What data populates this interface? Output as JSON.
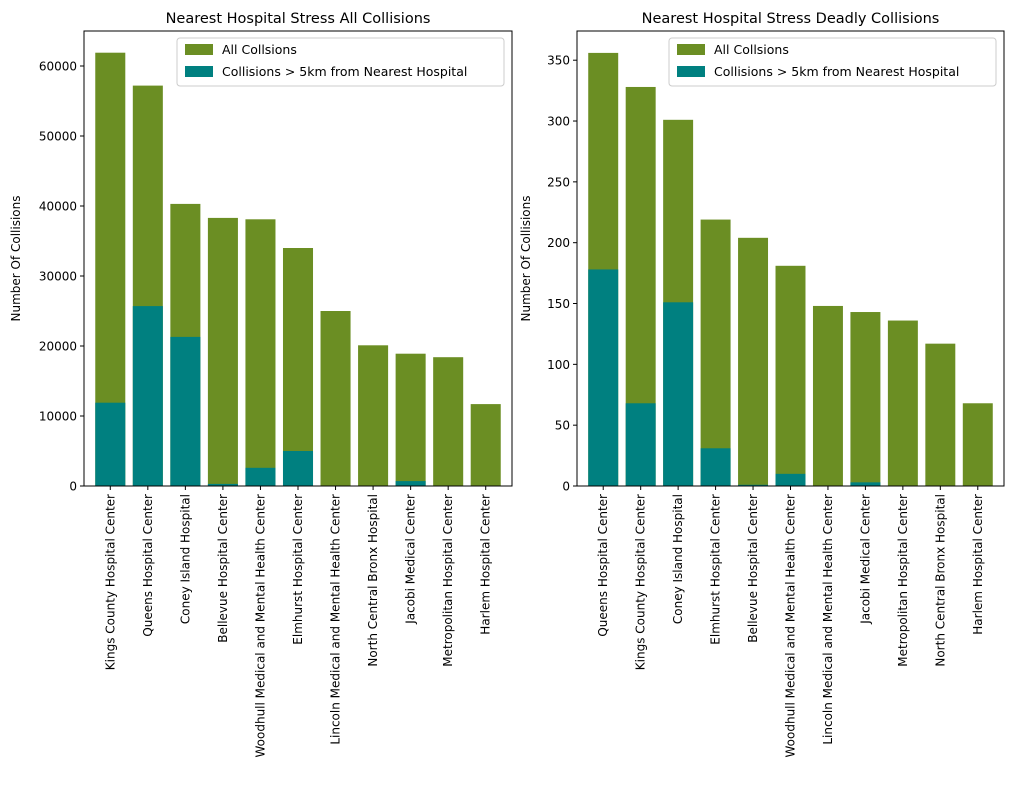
{
  "colors": {
    "all_collisions": "#6b8e23",
    "far_collisions": "#008080"
  },
  "chart_data": [
    {
      "type": "bar",
      "title": "Nearest Hospital Stress All Collisions",
      "xlabel": "",
      "ylabel": "Number Of Collisions",
      "ylim": [
        0,
        65000
      ],
      "yticks": [
        0,
        10000,
        20000,
        30000,
        40000,
        50000,
        60000
      ],
      "grid": false,
      "legend_position": "top-right",
      "categories": [
        "Kings County Hospital Center",
        "Queens Hospital Center",
        "Coney Island Hospital",
        "Bellevue Hospital Center",
        "Woodhull Medical and Mental Health Center",
        "Elmhurst Hospital Center",
        "Lincoln Medical and Mental Health Center",
        "North Central Bronx Hospital",
        "Jacobi Medical Center",
        "Metropolitan Hospital Center",
        "Harlem Hospital Center"
      ],
      "series": [
        {
          "name": "All Collsions",
          "values": [
            61900,
            57200,
            40300,
            38300,
            38100,
            34000,
            25000,
            20100,
            18900,
            18400,
            11700
          ]
        },
        {
          "name": "Collisions > 5km from Nearest Hospital",
          "values": [
            11900,
            25700,
            21300,
            300,
            2600,
            5000,
            0,
            0,
            700,
            0,
            0
          ]
        }
      ]
    },
    {
      "type": "bar",
      "title": "Nearest Hospital Stress Deadly Collisions",
      "xlabel": "",
      "ylabel": "Number Of Collisions",
      "ylim": [
        0,
        374
      ],
      "yticks": [
        0,
        50,
        100,
        150,
        200,
        250,
        300,
        350
      ],
      "grid": false,
      "legend_position": "top-right",
      "categories": [
        "Queens Hospital Center",
        "Kings County Hospital Center",
        "Coney Island Hospital",
        "Elmhurst Hospital Center",
        "Bellevue Hospital Center",
        "Woodhull Medical and Mental Health Center",
        "Lincoln Medical and Mental Health Center",
        "Jacobi Medical Center",
        "Metropolitan Hospital Center",
        "North Central Bronx Hospital",
        "Harlem Hospital Center"
      ],
      "series": [
        {
          "name": "All Collsions",
          "values": [
            356,
            328,
            301,
            219,
            204,
            181,
            148,
            143,
            136,
            117,
            68
          ]
        },
        {
          "name": "Collisions > 5km from Nearest Hospital",
          "values": [
            178,
            68,
            151,
            31,
            1,
            10,
            0,
            3,
            0,
            0,
            0
          ]
        }
      ]
    }
  ]
}
